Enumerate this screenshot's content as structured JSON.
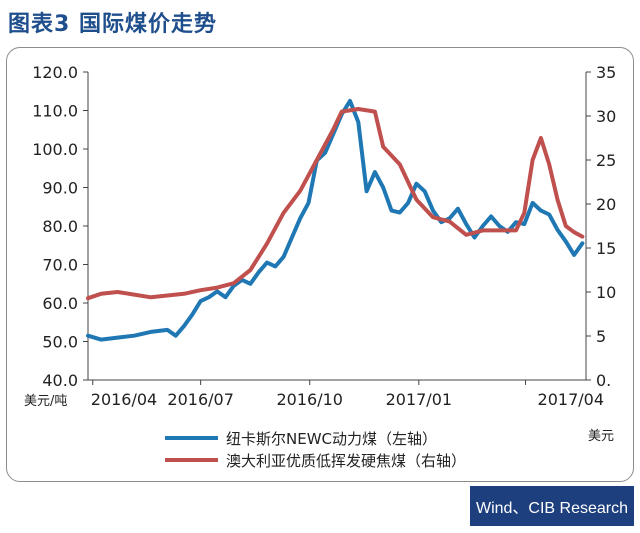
{
  "figure_title": "图表3  国际煤价走势",
  "source": "Wind、CIB Research",
  "chart_data": {
    "type": "line",
    "xlabel": "",
    "x_ticks": [
      "2016/04",
      "2016/07",
      "2016/10",
      "2017/01",
      "2017/04"
    ],
    "left_axis": {
      "unit": "美元/吨",
      "ylim": [
        40,
        120
      ],
      "ticks": [
        "40.0",
        "50.0",
        "60.0",
        "70.0",
        "80.0",
        "90.0",
        "100.0",
        "110.0",
        "120.0"
      ]
    },
    "right_axis": {
      "unit": "美元",
      "ylim": [
        0,
        35
      ],
      "ticks": [
        "0.",
        "5",
        "10",
        "15",
        "20",
        "25",
        "30",
        "35"
      ]
    },
    "legend_placement": "bottom",
    "series": [
      {
        "name": "纽卡斯尔NEWC动力煤（左轴）",
        "axis": "left",
        "color": "#1f78b4",
        "points": [
          [
            "2016/03/28",
            51.5
          ],
          [
            "2016/04/08",
            50.5
          ],
          [
            "2016/04/22",
            51.0
          ],
          [
            "2016/05/06",
            51.5
          ],
          [
            "2016/05/20",
            52.5
          ],
          [
            "2016/06/03",
            53.0
          ],
          [
            "2016/06/10",
            51.5
          ],
          [
            "2016/06/17",
            54.0
          ],
          [
            "2016/06/24",
            57.0
          ],
          [
            "2016/07/01",
            60.5
          ],
          [
            "2016/07/08",
            61.5
          ],
          [
            "2016/07/15",
            63.0
          ],
          [
            "2016/07/22",
            61.5
          ],
          [
            "2016/07/29",
            64.5
          ],
          [
            "2016/08/05",
            66.0
          ],
          [
            "2016/08/12",
            65.0
          ],
          [
            "2016/08/19",
            68.0
          ],
          [
            "2016/08/26",
            70.5
          ],
          [
            "2016/09/02",
            69.5
          ],
          [
            "2016/09/09",
            72.0
          ],
          [
            "2016/09/16",
            77.0
          ],
          [
            "2016/09/23",
            82.0
          ],
          [
            "2016/09/30",
            86.0
          ],
          [
            "2016/10/07",
            97.0
          ],
          [
            "2016/10/14",
            99.0
          ],
          [
            "2016/10/21",
            104.0
          ],
          [
            "2016/10/28",
            109.0
          ],
          [
            "2016/11/04",
            112.5
          ],
          [
            "2016/11/11",
            107.0
          ],
          [
            "2016/11/18",
            89.0
          ],
          [
            "2016/11/25",
            94.0
          ],
          [
            "2016/12/02",
            90.0
          ],
          [
            "2016/12/09",
            84.0
          ],
          [
            "2016/12/16",
            83.5
          ],
          [
            "2016/12/23",
            86.0
          ],
          [
            "2016/12/30",
            91.0
          ],
          [
            "2017/01/06",
            89.0
          ],
          [
            "2017/01/13",
            84.0
          ],
          [
            "2017/01/20",
            81.0
          ],
          [
            "2017/01/27",
            82.0
          ],
          [
            "2017/02/03",
            84.5
          ],
          [
            "2017/02/10",
            80.5
          ],
          [
            "2017/02/17",
            77.0
          ],
          [
            "2017/02/24",
            80.0
          ],
          [
            "2017/03/03",
            82.5
          ],
          [
            "2017/03/10",
            80.0
          ],
          [
            "2017/03/17",
            78.5
          ],
          [
            "2017/03/24",
            81.0
          ],
          [
            "2017/03/31",
            80.5
          ],
          [
            "2017/04/07",
            86.0
          ],
          [
            "2017/04/14",
            84.0
          ],
          [
            "2017/04/21",
            83.0
          ],
          [
            "2017/04/28",
            79.0
          ],
          [
            "2017/05/05",
            76.0
          ],
          [
            "2017/05/12",
            72.5
          ],
          [
            "2017/05/19",
            75.5
          ]
        ]
      },
      {
        "name": "澳大利亚优质低挥发硬焦煤（右轴）",
        "axis": "right",
        "color": "#c0504d",
        "points": [
          [
            "2016/03/28",
            9.3
          ],
          [
            "2016/04/08",
            9.8
          ],
          [
            "2016/04/22",
            10.0
          ],
          [
            "2016/05/06",
            9.7
          ],
          [
            "2016/05/20",
            9.4
          ],
          [
            "2016/06/03",
            9.6
          ],
          [
            "2016/06/17",
            9.8
          ],
          [
            "2016/07/01",
            10.2
          ],
          [
            "2016/07/15",
            10.5
          ],
          [
            "2016/07/29",
            11.0
          ],
          [
            "2016/08/12",
            12.5
          ],
          [
            "2016/08/26",
            15.5
          ],
          [
            "2016/09/09",
            19.0
          ],
          [
            "2016/09/23",
            21.5
          ],
          [
            "2016/10/07",
            25.0
          ],
          [
            "2016/10/21",
            28.5
          ],
          [
            "2016/10/28",
            30.5
          ],
          [
            "2016/11/11",
            30.8
          ],
          [
            "2016/11/25",
            30.5
          ],
          [
            "2016/12/02",
            26.5
          ],
          [
            "2016/12/16",
            24.5
          ],
          [
            "2016/12/30",
            20.5
          ],
          [
            "2017/01/13",
            18.5
          ],
          [
            "2017/01/27",
            18.0
          ],
          [
            "2017/02/10",
            16.5
          ],
          [
            "2017/02/24",
            17.0
          ],
          [
            "2017/03/10",
            17.0
          ],
          [
            "2017/03/24",
            17.0
          ],
          [
            "2017/03/31",
            19.0
          ],
          [
            "2017/04/07",
            25.0
          ],
          [
            "2017/04/14",
            27.5
          ],
          [
            "2017/04/21",
            24.5
          ],
          [
            "2017/04/28",
            20.5
          ],
          [
            "2017/05/05",
            17.5
          ],
          [
            "2017/05/12",
            16.8
          ],
          [
            "2017/05/19",
            16.3
          ]
        ]
      }
    ]
  }
}
